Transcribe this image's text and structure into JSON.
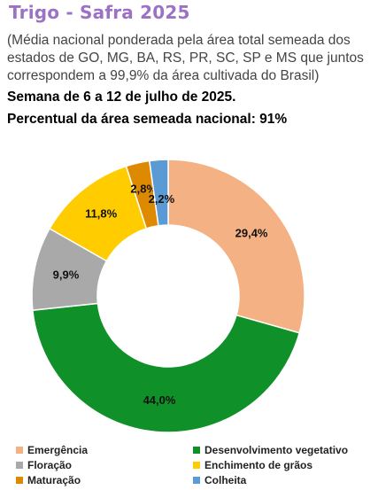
{
  "header": {
    "title": "Trigo - Safra 2025",
    "subtitle": "(Média nacional ponderada pela área total semeada dos estados de GO, MG, BA, RS, PR, SC, SP e MS que juntos correspondem a 99,9% da área cultivada do Brasil)",
    "week": "Semana de 6 a 12 de julho de 2025.",
    "percent_area": "Percentual da área semeada nacional: 91%"
  },
  "chart_data": {
    "type": "pie",
    "style": "donut",
    "legend_position": "bottom",
    "slices": [
      {
        "name": "Emergência",
        "value": 29.4,
        "label": "29,4%",
        "color": "#f4b183"
      },
      {
        "name": "Desenvolvimento vegetativo",
        "value": 44.0,
        "label": "44,0%",
        "color": "#109028"
      },
      {
        "name": "Floração",
        "value": 9.9,
        "label": "9,9%",
        "color": "#a9a9a9"
      },
      {
        "name": "Enchimento de grãos",
        "value": 11.8,
        "label": "11,8%",
        "color": "#ffcc00"
      },
      {
        "name": "Maturação",
        "value": 2.8,
        "label": "2,8%",
        "color": "#dd8a00"
      },
      {
        "name": "Colheita",
        "value": 2.2,
        "label": "2,2%",
        "color": "#5b9bd5"
      }
    ]
  }
}
